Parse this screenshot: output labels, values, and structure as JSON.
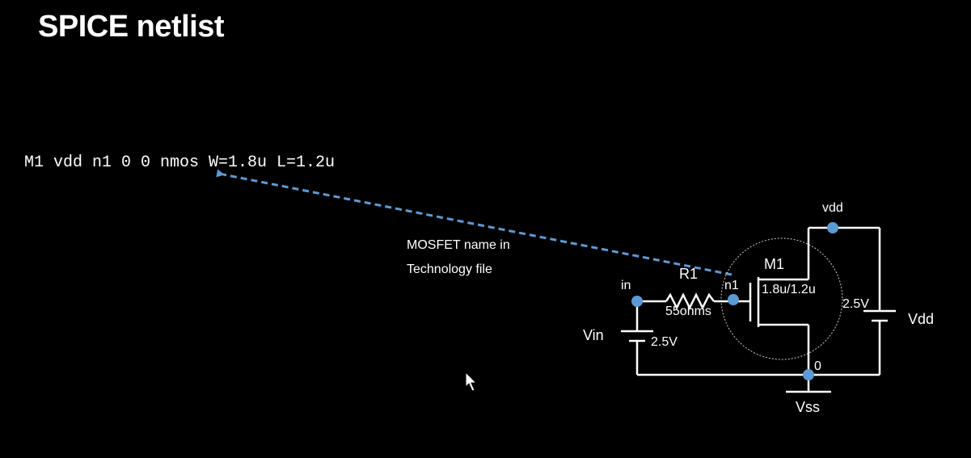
{
  "slide": {
    "title": "SPICE netlist",
    "netlist_line": "M1 vdd n1 0 0 nmos W=1.8u L=1.2u"
  },
  "annotation": {
    "lines": [
      "MOSFET name in",
      "Technology file"
    ]
  },
  "circuit": {
    "transistor_name": "M1",
    "transistor_size": "1.8u/1.2u",
    "resistor_name": "R1",
    "resistor_value": "55ohms",
    "node_in": "in",
    "node_n1": "n1",
    "node_vdd": "vdd",
    "node_0": "0",
    "source_vin_name": "Vin",
    "source_vin_value": "2.5V",
    "source_vdd_name": "Vdd",
    "source_vdd_value": "2.5V",
    "ground_label": "Vss"
  },
  "colors": {
    "background": "#000000",
    "text": "#ffffff",
    "accent_arrow": "#5b9bd5",
    "node_dot": "#5b9bd5"
  }
}
